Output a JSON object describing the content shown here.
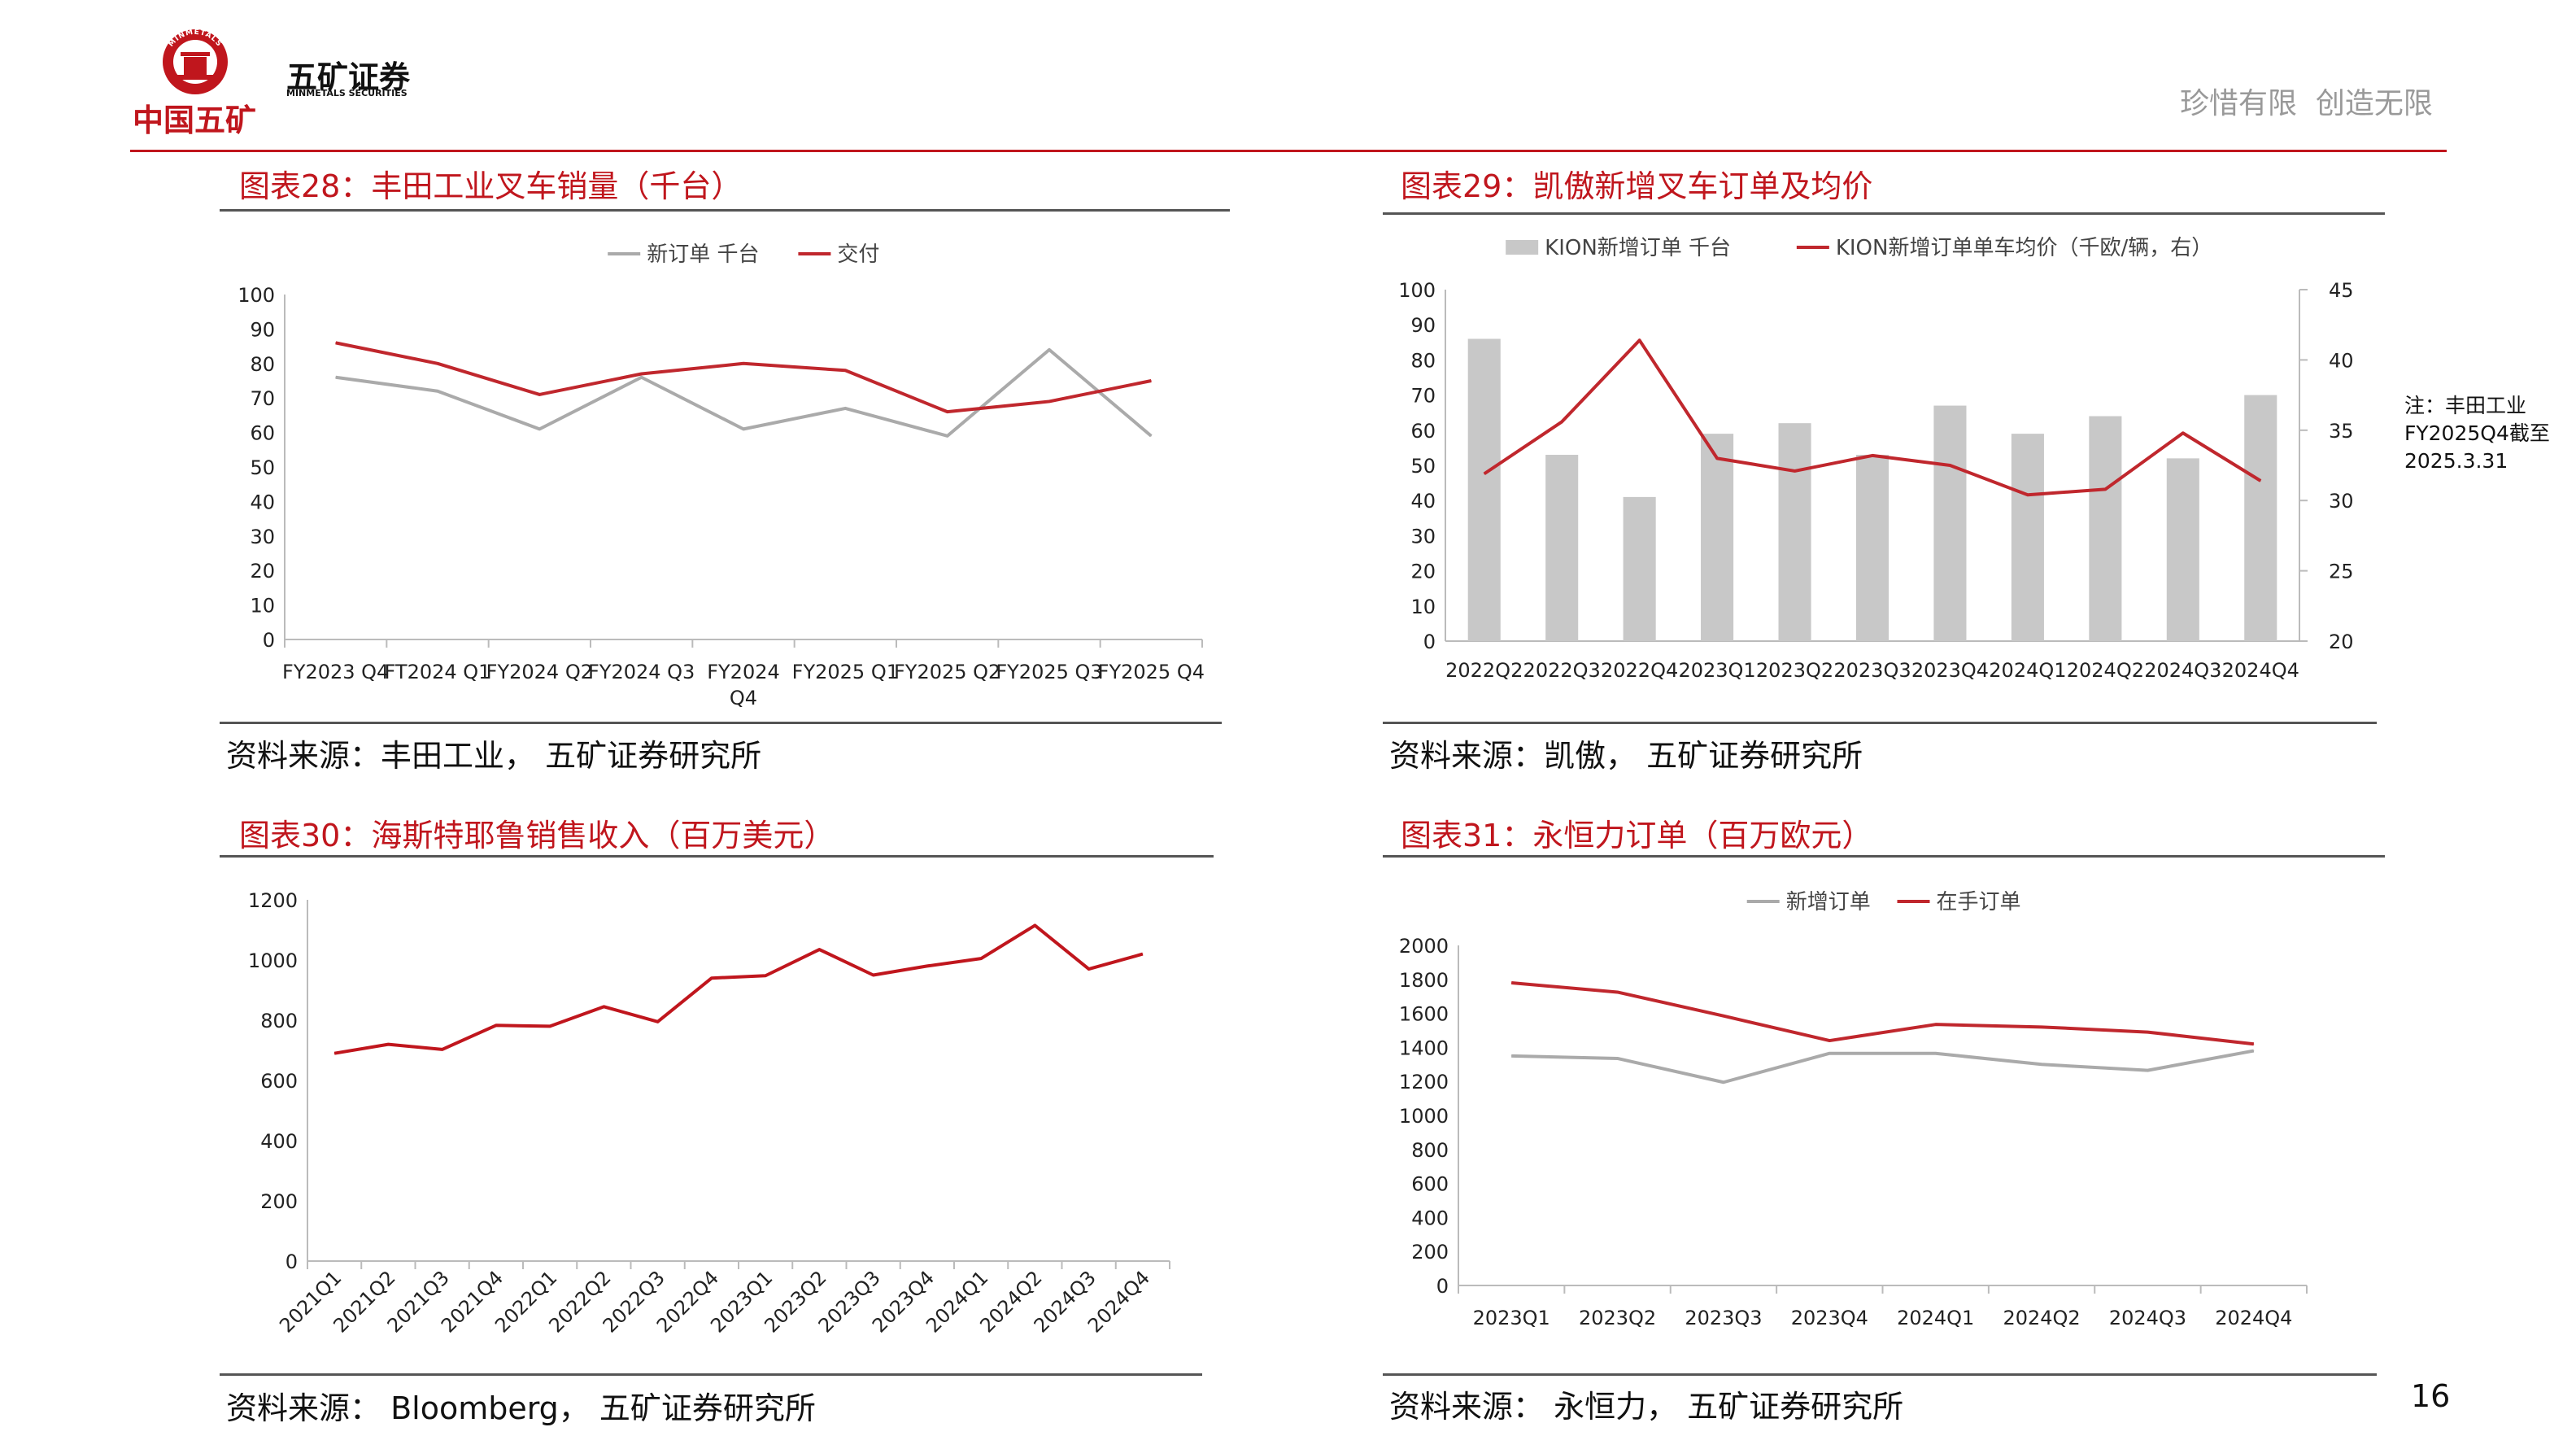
{
  "header": {
    "logo_company_cn": "五矿证券",
    "logo_company_en": "MINMETALS SECURITIES",
    "logo_group_cn": "中国五矿",
    "logo_ring_text": "MINMETALS",
    "slogan": "珍惜有限  创造无限",
    "accent_color": "#c0161d"
  },
  "page_number": "16",
  "side_note": [
    "注：丰田工业",
    "FY2025Q4截至",
    "2025.3.31"
  ],
  "chart_data": [
    {
      "id": "fig28",
      "type": "line",
      "title": "图表28：丰田工业叉车销量（千台）",
      "source": "资料来源：丰田工业， 五矿证券研究所",
      "categories": [
        "FY2023 Q4",
        "FT2024 Q1",
        "FY2024 Q2",
        "FY2024 Q3",
        "FY2024 Q4",
        "FY2025 Q1",
        "FY2025 Q2",
        "FY2025 Q3",
        "FY2025 Q4"
      ],
      "category_lines": [
        [
          "FY2023 Q4"
        ],
        [
          "FT2024 Q1"
        ],
        [
          "FY2024 Q2"
        ],
        [
          "FY2024 Q3"
        ],
        [
          "FY2024",
          "Q4"
        ],
        [
          "FY2025 Q1"
        ],
        [
          "FY2025 Q2"
        ],
        [
          "FY2025 Q3"
        ],
        [
          "FY2025 Q4"
        ]
      ],
      "series": [
        {
          "name": "新订单 千台",
          "color": "#aaaaaa",
          "values": [
            76,
            72,
            61,
            76,
            61,
            67,
            59,
            84,
            59
          ]
        },
        {
          "name": "交付",
          "color": "#c0272d",
          "values": [
            86,
            80,
            71,
            77,
            80,
            78,
            66,
            69,
            75
          ]
        }
      ],
      "ylim": [
        0,
        100
      ],
      "yticks": [
        0,
        10,
        20,
        30,
        40,
        50,
        60,
        70,
        80,
        90,
        100
      ],
      "legend_position": "top-center"
    },
    {
      "id": "fig29",
      "type": "bar+line",
      "title": "图表29：凯傲新增叉车订单及均价",
      "source": "资料来源：凯傲， 五矿证券研究所",
      "categories": [
        "2022Q2",
        "2022Q3",
        "2022Q4",
        "2023Q1",
        "2023Q2",
        "2023Q3",
        "2023Q4",
        "2024Q1",
        "2024Q2",
        "2024Q3",
        "2024Q4"
      ],
      "bar_series": {
        "name": "KION新增订单 千台",
        "color": "#c8c8c8",
        "values": [
          86,
          53,
          41,
          59,
          62,
          53,
          67,
          59,
          64,
          52,
          70
        ]
      },
      "line_series": {
        "name": "KION新增订单单车均价（千欧/辆，右）",
        "color": "#c0272d",
        "values": [
          31.9,
          35.6,
          41.4,
          33.0,
          32.1,
          33.2,
          32.5,
          30.4,
          30.8,
          34.8,
          31.4
        ]
      },
      "ylim_left": [
        0,
        100
      ],
      "yticks_left": [
        0,
        10,
        20,
        30,
        40,
        50,
        60,
        70,
        80,
        90,
        100
      ],
      "ylim_right": [
        20,
        45
      ],
      "yticks_right": [
        20,
        25,
        30,
        35,
        40,
        45
      ],
      "legend_position": "top-center"
    },
    {
      "id": "fig30",
      "type": "line",
      "title": "图表30：海斯特耶鲁销售收入（百万美元）",
      "source": "资料来源： Bloomberg， 五矿证券研究所",
      "categories": [
        "2021Q1",
        "2021Q2",
        "2021Q3",
        "2021Q4",
        "2022Q1",
        "2022Q2",
        "2022Q3",
        "2022Q4",
        "2023Q1",
        "2023Q2",
        "2023Q3",
        "2023Q4",
        "2024Q1",
        "2024Q2",
        "2024Q3",
        "2024Q4"
      ],
      "series": [
        {
          "name": "销售收入",
          "color": "#c0161d",
          "values": [
            690,
            720,
            703,
            783,
            780,
            845,
            795,
            940,
            948,
            1035,
            950,
            980,
            1005,
            1115,
            970,
            1020
          ]
        }
      ],
      "ylim": [
        0,
        1200
      ],
      "yticks": [
        0,
        200,
        400,
        600,
        800,
        1000,
        1200
      ],
      "legend_position": "none"
    },
    {
      "id": "fig31",
      "type": "line",
      "title": "图表31：永恒力订单（百万欧元）",
      "source": "资料来源： 永恒力， 五矿证券研究所",
      "categories": [
        "2023Q1",
        "2023Q2",
        "2023Q3",
        "2023Q4",
        "2024Q1",
        "2024Q2",
        "2024Q3",
        "2024Q4"
      ],
      "series": [
        {
          "name": "新增订单",
          "color": "#aaaaaa",
          "values": [
            1350,
            1335,
            1195,
            1365,
            1365,
            1300,
            1265,
            1380
          ]
        },
        {
          "name": "在手订单",
          "color": "#c0272d",
          "values": [
            1780,
            1725,
            1585,
            1440,
            1535,
            1520,
            1490,
            1420
          ]
        }
      ],
      "ylim": [
        0,
        2000
      ],
      "yticks": [
        0,
        200,
        400,
        600,
        800,
        1000,
        1200,
        1400,
        1600,
        1800,
        2000
      ],
      "legend_position": "top-center"
    }
  ]
}
